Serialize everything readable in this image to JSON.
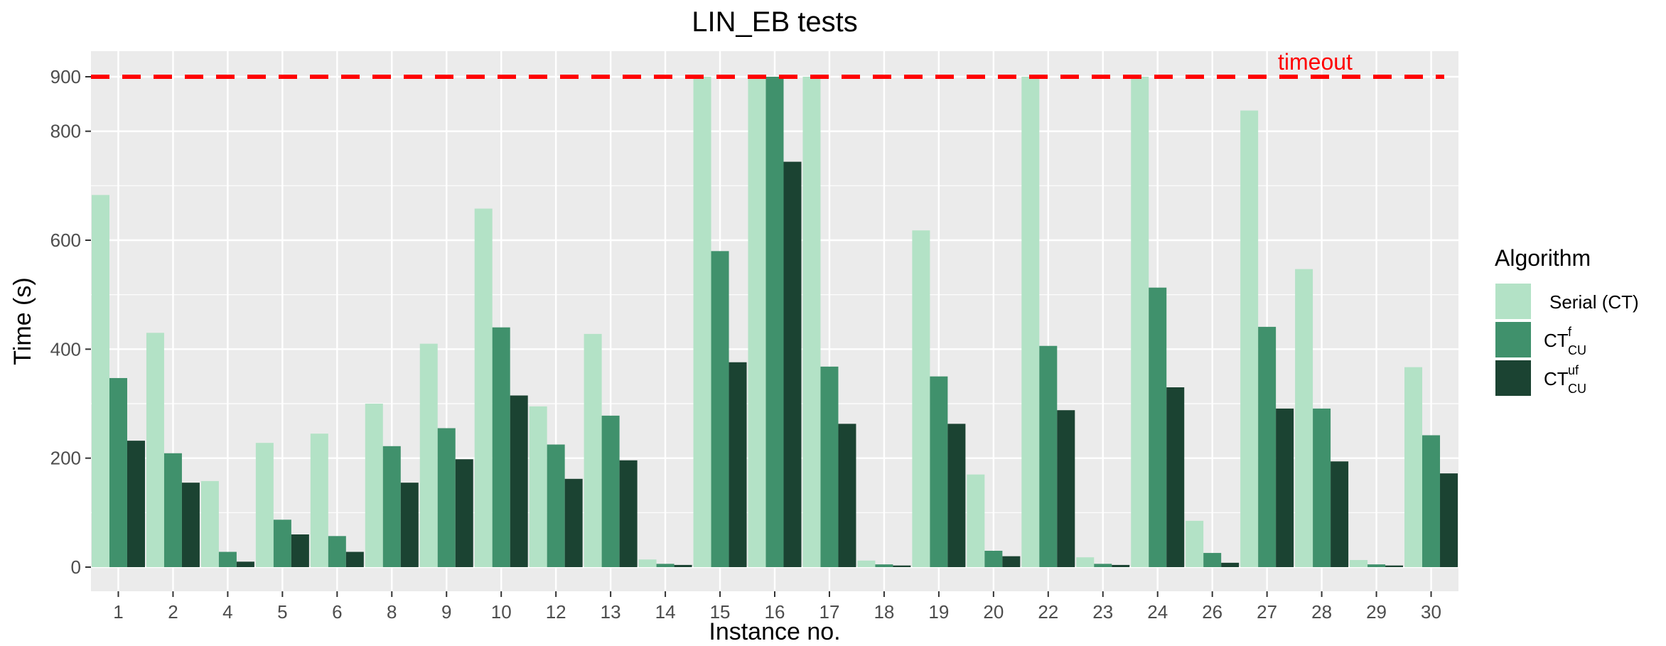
{
  "chart_data": {
    "type": "bar",
    "title": "LIN_EB tests",
    "xlabel": "Instance no.",
    "ylabel": "Time (s)",
    "categories": [
      "1",
      "2",
      "4",
      "5",
      "6",
      "8",
      "9",
      "10",
      "12",
      "13",
      "14",
      "15",
      "16",
      "17",
      "18",
      "19",
      "20",
      "22",
      "23",
      "24",
      "26",
      "27",
      "28",
      "29",
      "30"
    ],
    "ylim": [
      0,
      950
    ],
    "yticks": [
      0,
      200,
      400,
      600,
      800,
      900
    ],
    "grid": true,
    "legend": {
      "title": "Algorithm",
      "placement": "right",
      "entries": [
        {
          "label": "Serial (CT)",
          "base": "Serial (CT)",
          "sup": "",
          "sub": ""
        },
        {
          "label": "CT^f_CU",
          "base": "CT",
          "sup": "f",
          "sub": "CU"
        },
        {
          "label": "CT^uf_CU",
          "base": "CT",
          "sup": "uf",
          "sub": "CU"
        }
      ]
    },
    "series": [
      {
        "name": "Serial (CT)",
        "color": "#b3e2c6",
        "values": [
          683,
          430,
          158,
          228,
          245,
          300,
          410,
          658,
          295,
          428,
          14,
          900,
          900,
          900,
          12,
          618,
          170,
          900,
          18,
          900,
          85,
          838,
          547,
          13,
          367
        ]
      },
      {
        "name": "CT^f_CU",
        "color": "#40916c",
        "values": [
          347,
          209,
          28,
          87,
          57,
          222,
          255,
          440,
          225,
          278,
          6,
          580,
          900,
          368,
          5,
          350,
          30,
          406,
          6,
          513,
          26,
          441,
          291,
          5,
          242
        ]
      },
      {
        "name": "CT^uf_CU",
        "color": "#1b4332",
        "values": [
          232,
          155,
          10,
          60,
          28,
          155,
          198,
          315,
          162,
          196,
          4,
          376,
          744,
          263,
          3,
          263,
          20,
          288,
          4,
          330,
          8,
          291,
          194,
          3,
          172
        ]
      }
    ],
    "reference_line": {
      "value": 900,
      "label": "timeout",
      "color": "#ff0000"
    }
  },
  "colors": {
    "panel_background": "#ebebeb",
    "grid": "#ffffff",
    "timeout_line": "#ff0000"
  }
}
